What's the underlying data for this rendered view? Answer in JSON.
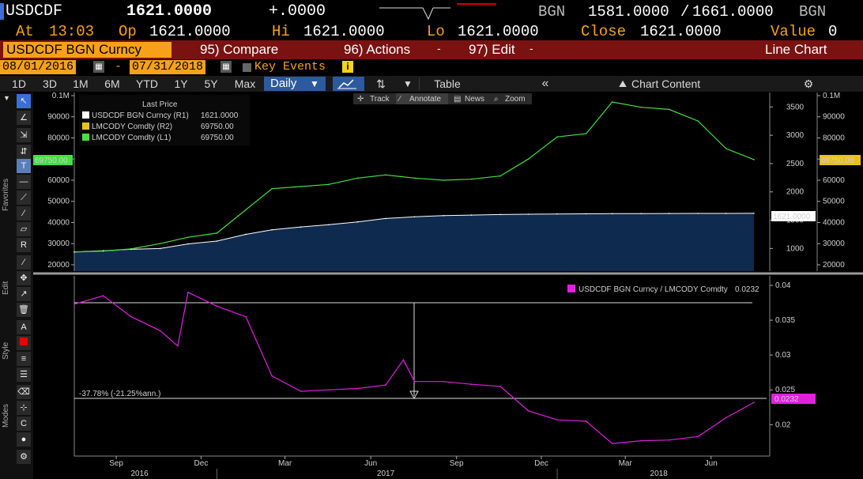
{
  "header": {
    "ticker": "USDCDF",
    "last": "1621.0000",
    "change": "+.0000",
    "ccy1": "BGN",
    "bid": "1581.0000",
    "slash": "/",
    "ask": "1661.0000",
    "ccy2": "BGN",
    "at_label": "At",
    "time": "13:03",
    "op_label": "Op",
    "op": "1621.0000",
    "hi_label": "Hi",
    "hi": "1621.0000",
    "lo_label": "Lo",
    "lo": "1621.0000",
    "close_label": "Close",
    "close": "1621.0000",
    "value_label": "Value",
    "value": "0"
  },
  "menubar": {
    "security": "USDCDF BGN Curncy",
    "compare": "95) Compare",
    "actions": "96) Actions",
    "edit": "97) Edit",
    "chart_type": "Line Chart"
  },
  "daterange": {
    "start": "08/01/2016",
    "dash": "-",
    "end": "07/31/2018",
    "key_events": "Key Events",
    "info": "i"
  },
  "toolbar": {
    "periods": [
      "1D",
      "3D",
      "1M",
      "6M",
      "YTD",
      "1Y",
      "5Y",
      "Max"
    ],
    "frequency": "Daily",
    "table": "Table",
    "collapse": "«",
    "chart_content": "Chart Content"
  },
  "chart_tools": {
    "track": "Track",
    "annotate": "Annotate",
    "news": "News",
    "zoom": "Zoom"
  },
  "legend_top": {
    "title": "Last Price",
    "items": [
      {
        "label": "USDCDF BGN Curncy  (R1)",
        "value": "1621.0000",
        "color": "#ffffff"
      },
      {
        "label": "LMCODY Comdty  (R2)",
        "value": "69750.00",
        "color": "#e8c21a"
      },
      {
        "label": "LMCODY Comdty  (L1)",
        "value": "69750.00",
        "color": "#44e044"
      }
    ]
  },
  "legend_bottom": {
    "label": "USDCDF BGN Curncy / LMCODY Comdty",
    "value": "0.0232",
    "color": "#e020e0"
  },
  "annotation": {
    "text": "-37.78% (-21.25%ann.)"
  },
  "badges": {
    "left_green": "69750.00",
    "right_white": "1621.0000",
    "right_green": "69750.00",
    "right_magenta": "0.0232"
  },
  "leftbar": {
    "favorites": "Favorites",
    "edit": "Edit",
    "style": "Style",
    "modes": "Modes"
  },
  "chart_data": [
    {
      "type": "line",
      "title": "Last Price",
      "x": [
        "2016-08-01",
        "2016-09-01",
        "2016-10-01",
        "2016-11-01",
        "2016-12-01",
        "2017-01-01",
        "2017-02-01",
        "2017-03-01",
        "2017-04-01",
        "2017-05-01",
        "2017-06-01",
        "2017-07-01",
        "2017-08-01",
        "2017-09-01",
        "2017-10-01",
        "2017-11-01",
        "2017-12-01",
        "2018-01-01",
        "2018-02-01",
        "2018-03-01",
        "2018-04-01",
        "2018-05-01",
        "2018-06-01",
        "2018-07-01",
        "2018-07-31"
      ],
      "series": [
        {
          "name": "LMCODY Comdty (L1)",
          "axis": "left",
          "color": "#44e044",
          "values": [
            26000,
            26500,
            27500,
            30000,
            33000,
            35000,
            46000,
            56000,
            57000,
            58000,
            61000,
            62500,
            61000,
            60000,
            60500,
            62000,
            70000,
            80500,
            82000,
            97000,
            94500,
            93500,
            88000,
            75000,
            69750
          ]
        },
        {
          "name": "USDCDF BGN Curncy (R1)",
          "axis": "right",
          "color": "#ffffff",
          "values": [
            940,
            960,
            985,
            1000,
            1080,
            1130,
            1250,
            1330,
            1380,
            1420,
            1470,
            1530,
            1560,
            1580,
            1590,
            1600,
            1605,
            1610,
            1612,
            1615,
            1617,
            1618,
            1619,
            1620,
            1621
          ]
        }
      ],
      "ylim_left": [
        17000,
        100000
      ],
      "ylim_right": [
        600,
        3700
      ],
      "left_ticks": [
        "0.1M",
        "90000",
        "80000",
        "70000",
        "60000",
        "50000",
        "40000",
        "30000",
        "20000"
      ],
      "right_ticks_r1": [
        "3500",
        "3000",
        "2500",
        "2000",
        "1500",
        "1000"
      ],
      "right_ticks_l": [
        "0.1M",
        "90000",
        "80000",
        "70000",
        "60000",
        "50000",
        "40000",
        "30000",
        "20000"
      ]
    },
    {
      "type": "line",
      "title": "USDCDF BGN Curncy / LMCODY Comdty",
      "x": [
        "2016-08-01",
        "2016-09-01",
        "2016-10-01",
        "2016-11-01",
        "2016-11-20",
        "2016-12-01",
        "2017-01-01",
        "2017-02-01",
        "2017-03-01",
        "2017-04-01",
        "2017-05-01",
        "2017-06-01",
        "2017-07-01",
        "2017-07-20",
        "2017-08-01",
        "2017-09-01",
        "2017-10-01",
        "2017-11-01",
        "2017-12-01",
        "2018-01-01",
        "2018-02-01",
        "2018-03-01",
        "2018-04-01",
        "2018-05-01",
        "2018-06-01",
        "2018-07-01",
        "2018-07-31"
      ],
      "series": [
        {
          "name": "USDCDF BGN Curncy / LMCODY Comdty",
          "color": "#e020e0",
          "values": [
            0.0373,
            0.0385,
            0.0355,
            0.0335,
            0.0313,
            0.039,
            0.037,
            0.0355,
            0.027,
            0.0248,
            0.025,
            0.0252,
            0.0257,
            0.0293,
            0.0262,
            0.0262,
            0.0258,
            0.0255,
            0.022,
            0.0207,
            0.0205,
            0.0173,
            0.0177,
            0.0178,
            0.0183,
            0.021,
            0.0232
          ]
        }
      ],
      "ylim": [
        0.0155,
        0.04
      ],
      "ticks": [
        "0.04",
        "0.035",
        "0.03",
        "0.025",
        "0.02"
      ],
      "x_month_labels": [
        "Sep",
        "Dec",
        "Mar",
        "Jun",
        "Sep",
        "Dec",
        "Mar",
        "Jun"
      ],
      "x_year_labels": [
        "2016",
        "2017",
        "2018"
      ]
    }
  ]
}
